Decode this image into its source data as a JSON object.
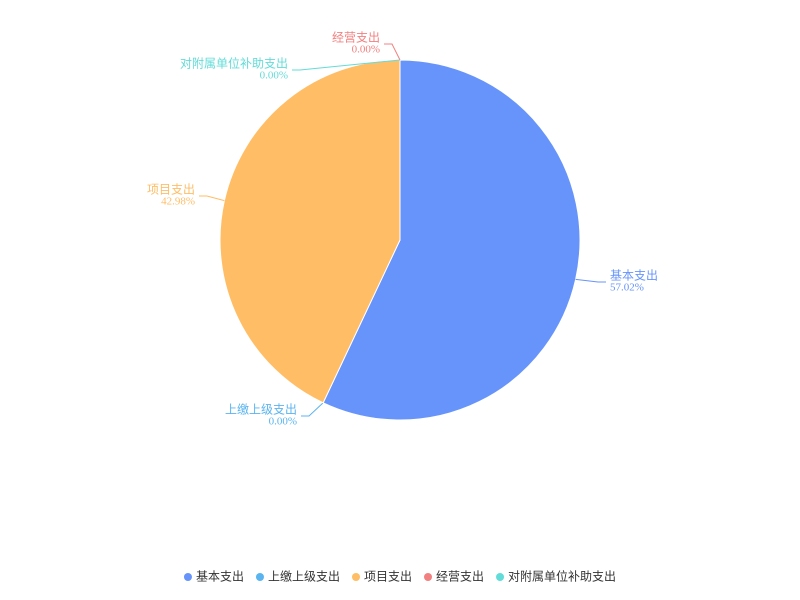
{
  "chart_data": {
    "type": "pie",
    "categories": [
      "基本支出",
      "上缴上级支出",
      "项目支出",
      "经营支出",
      "对附属单位补助支出"
    ],
    "values": [
      57.02,
      0.0,
      42.98,
      0.0,
      0.0
    ],
    "value_labels": [
      "57.02%",
      "0.00%",
      "42.98%",
      "0.00%",
      "0.00%"
    ],
    "colors": [
      "#6794fb",
      "#5ab4f0",
      "#ffbd66",
      "#f28080",
      "#62dcd8"
    ],
    "legend": "bottom"
  }
}
